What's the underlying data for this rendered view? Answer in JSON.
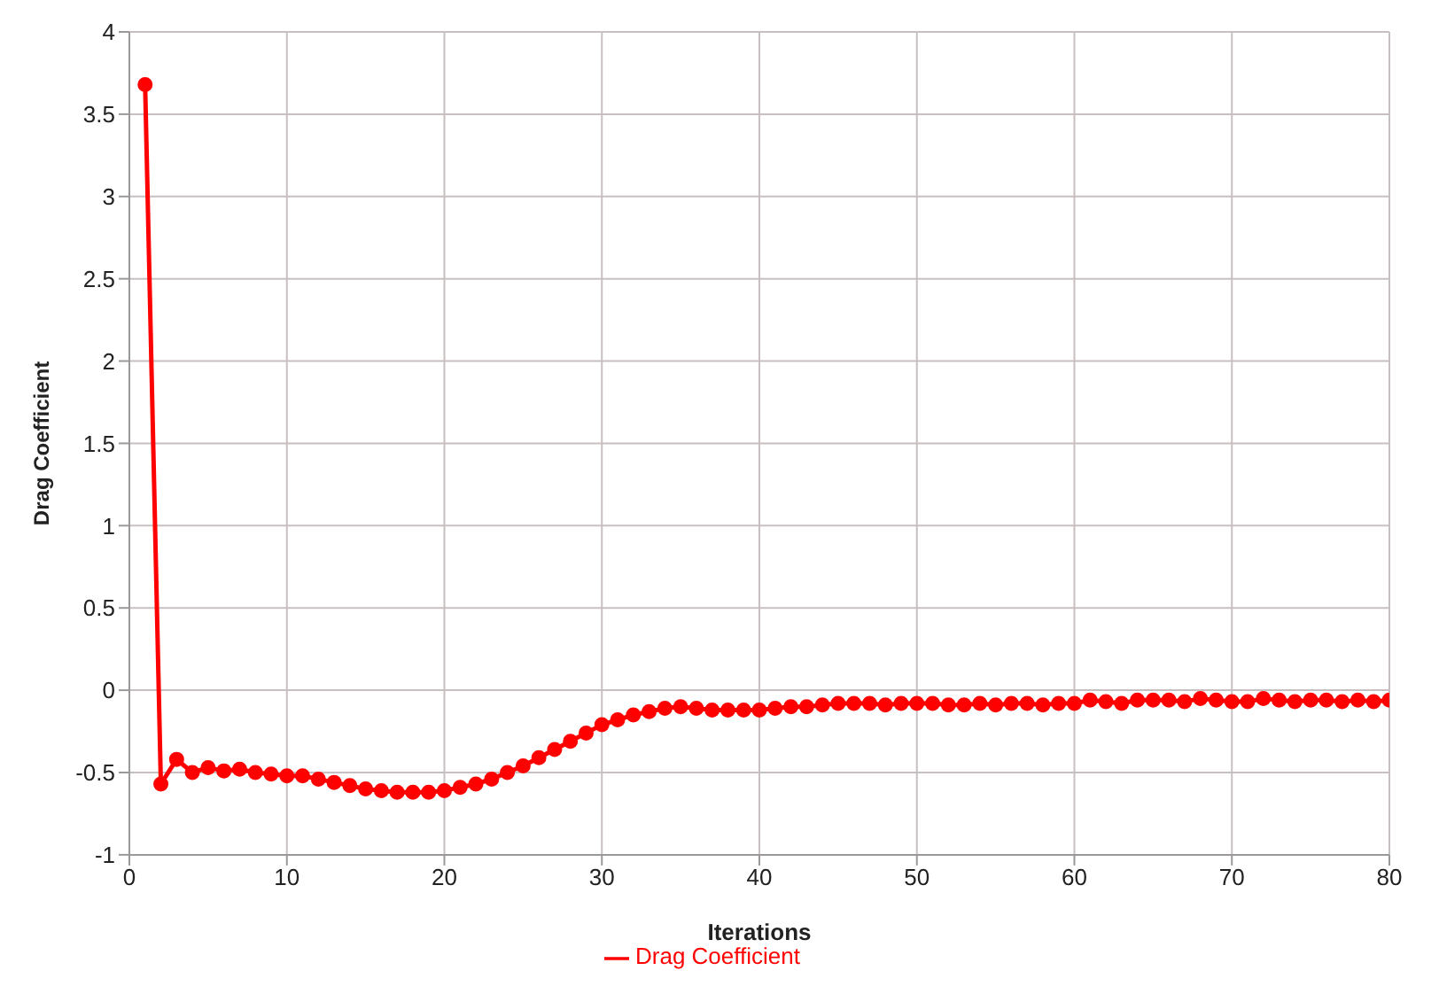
{
  "chart_data": {
    "type": "line",
    "xlabel": "Iterations",
    "ylabel": "Drag Coefficient",
    "x": [
      1,
      2,
      3,
      4,
      5,
      6,
      7,
      8,
      9,
      10,
      11,
      12,
      13,
      14,
      15,
      16,
      17,
      18,
      19,
      20,
      21,
      22,
      23,
      24,
      25,
      26,
      27,
      28,
      29,
      30,
      31,
      32,
      33,
      34,
      35,
      36,
      37,
      38,
      39,
      40,
      41,
      42,
      43,
      44,
      45,
      46,
      47,
      48,
      49,
      50,
      51,
      52,
      53,
      54,
      55,
      56,
      57,
      58,
      59,
      60,
      61,
      62,
      63,
      64,
      65,
      66,
      67,
      68,
      69,
      70,
      71,
      72,
      73,
      74,
      75,
      76,
      77,
      78,
      79,
      80
    ],
    "series": [
      {
        "name": "Drag Coefficient",
        "color": "#ff0000",
        "values": [
          3.68,
          -0.57,
          -0.42,
          -0.5,
          -0.47,
          -0.49,
          -0.48,
          -0.5,
          -0.51,
          -0.52,
          -0.52,
          -0.54,
          -0.56,
          -0.58,
          -0.6,
          -0.61,
          -0.62,
          -0.62,
          -0.62,
          -0.61,
          -0.59,
          -0.57,
          -0.54,
          -0.5,
          -0.46,
          -0.41,
          -0.36,
          -0.31,
          -0.26,
          -0.21,
          -0.18,
          -0.15,
          -0.13,
          -0.11,
          -0.1,
          -0.11,
          -0.12,
          -0.12,
          -0.12,
          -0.12,
          -0.11,
          -0.1,
          -0.1,
          -0.09,
          -0.08,
          -0.08,
          -0.08,
          -0.09,
          -0.08,
          -0.08,
          -0.08,
          -0.09,
          -0.09,
          -0.08,
          -0.09,
          -0.08,
          -0.08,
          -0.09,
          -0.08,
          -0.08,
          -0.06,
          -0.07,
          -0.08,
          -0.06,
          -0.06,
          -0.06,
          -0.07,
          -0.05,
          -0.06,
          -0.07,
          -0.07,
          -0.05,
          -0.06,
          -0.07,
          -0.06,
          -0.06,
          -0.07,
          -0.06,
          -0.07,
          -0.06
        ]
      }
    ],
    "xlim": [
      0,
      80
    ],
    "xticks": [
      0,
      10,
      20,
      30,
      40,
      50,
      60,
      70,
      80
    ],
    "ylim": [
      -1,
      4
    ],
    "yticks": [
      -1,
      -0.5,
      0,
      0.5,
      1,
      1.5,
      2,
      2.5,
      3,
      3.5,
      4
    ],
    "grid": true,
    "legend": "bottom",
    "marker": "circle",
    "line_style": "solid"
  }
}
